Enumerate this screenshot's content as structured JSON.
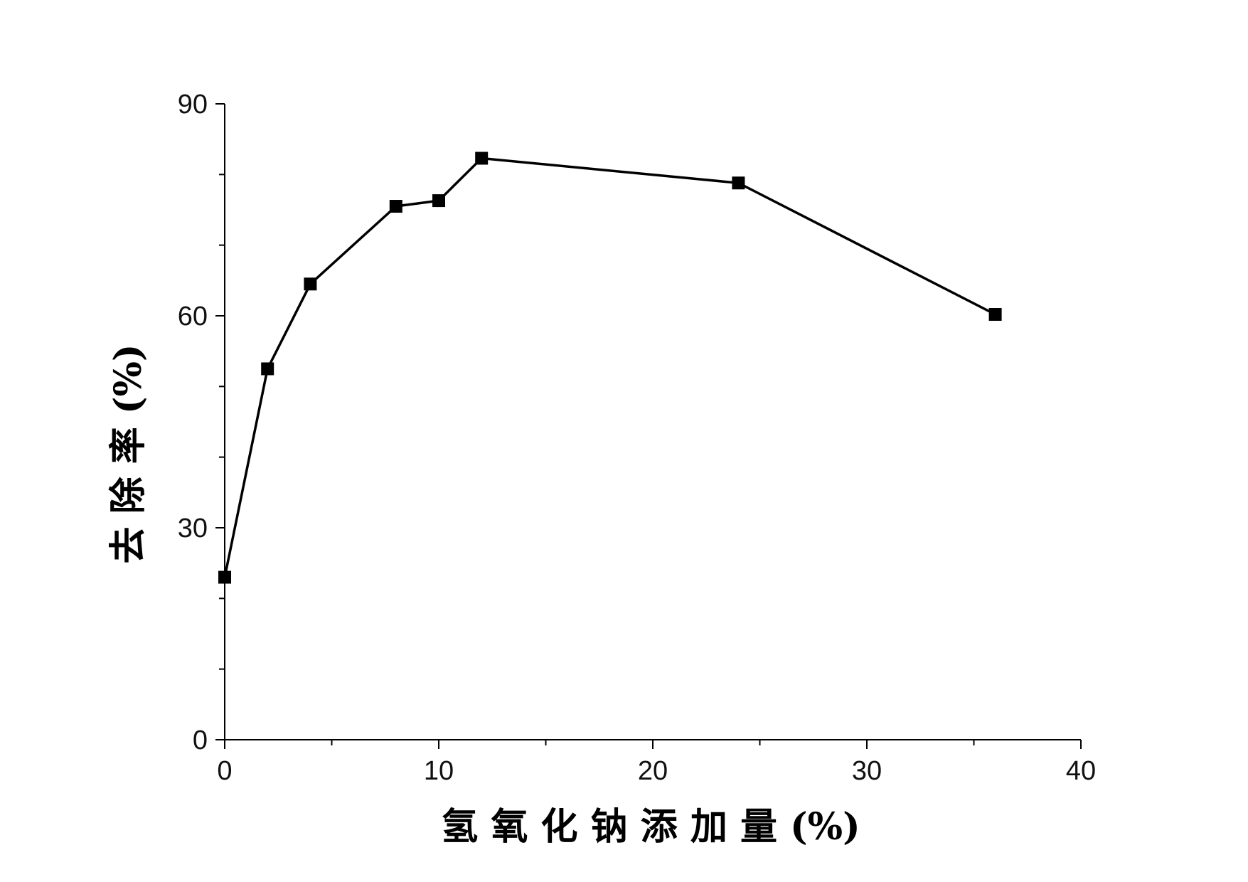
{
  "chart_data": {
    "type": "line",
    "title": "",
    "xlabel": "氢 氧 化 钠 添 加 量 (%)",
    "ylabel": "去 除 率 (%)",
    "xlim": [
      0,
      40
    ],
    "ylim": [
      0,
      90
    ],
    "x_ticks": [
      0,
      10,
      20,
      30,
      40
    ],
    "x_minor_ticks": [
      5,
      15,
      25,
      35
    ],
    "y_ticks": [
      0,
      30,
      60,
      90
    ],
    "y_minor_ticks": [
      10,
      20,
      40,
      50,
      70,
      80
    ],
    "x_tick_labels": [
      "0",
      "10",
      "20",
      "30",
      "40"
    ],
    "y_tick_labels": [
      "0",
      "30",
      "60",
      "90"
    ],
    "grid": false,
    "marker": "square",
    "series": [
      {
        "color": "#000000",
        "x": [
          0,
          2,
          4,
          8,
          10,
          12,
          24,
          36
        ],
        "y": [
          23,
          52.5,
          64.5,
          75.5,
          76.3,
          82.3,
          78.8,
          60.2
        ]
      }
    ]
  }
}
